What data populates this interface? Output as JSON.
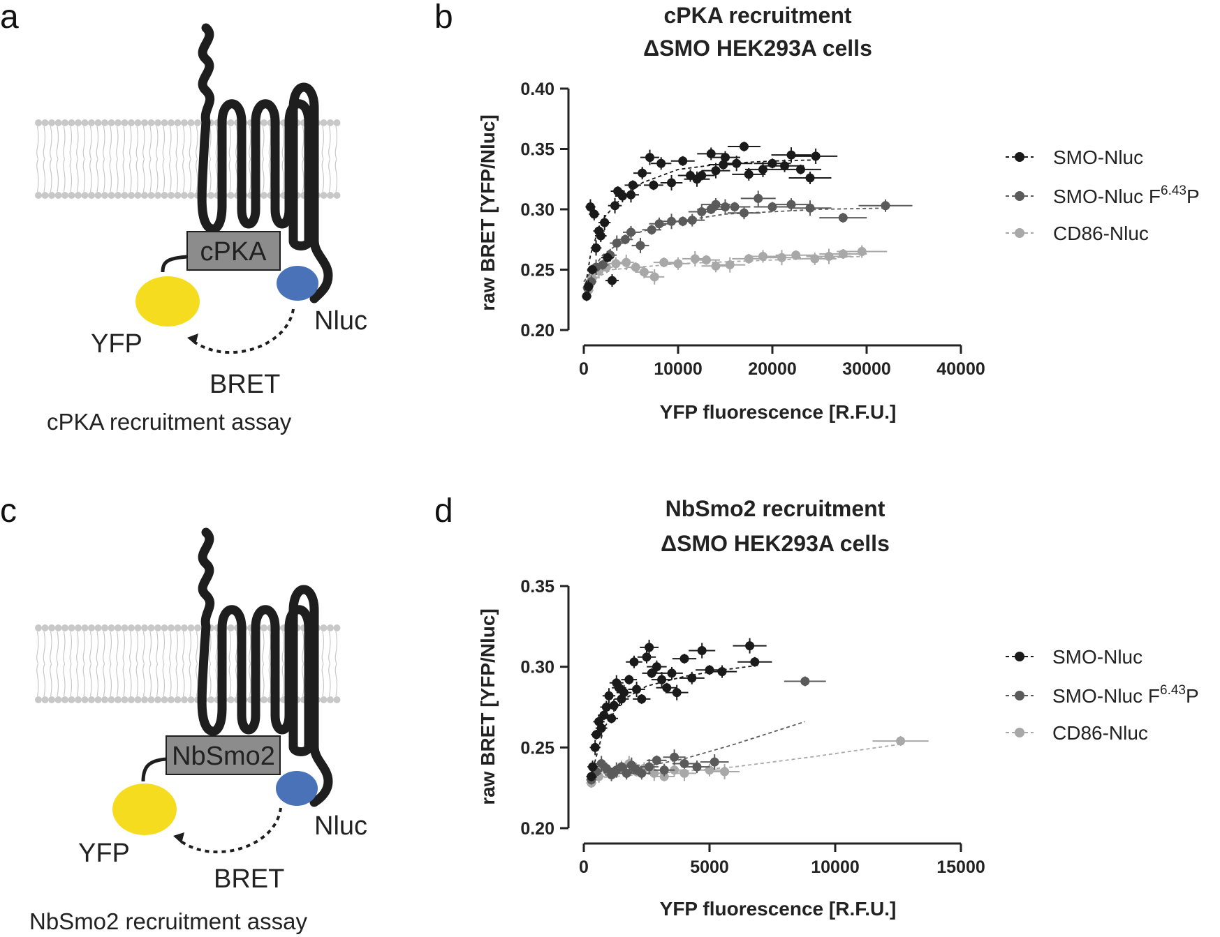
{
  "panels": {
    "a": {
      "letter": "a",
      "box_label": "cPKA",
      "yfp_label": "YFP",
      "nluc_label": "Nluc",
      "bret_label": "BRET",
      "caption": "cPKA recruitment assay"
    },
    "c": {
      "letter": "c",
      "box_label": "NbSmo2",
      "yfp_label": "YFP",
      "nluc_label": "Nluc",
      "bret_label": "BRET",
      "caption": "NbSmo2 recruitment assay"
    }
  },
  "colors": {
    "membrane": "#c8c8c8",
    "receptor": "#1e1e1e",
    "box_fill": "#8c8c8c",
    "yfp": "#f5dc1e",
    "nluc": "#4a72b8",
    "smo_nluc": "#1a1a1a",
    "smo_nluc_mut": "#5a5a5a",
    "cd86_nluc": "#a8a8a8"
  },
  "chart_data": [
    {
      "letter": "b",
      "type": "scatter",
      "title": "cPKA recruitment",
      "subtitle": "ΔSMO HEK293A cells",
      "xlabel": "YFP fluorescence [R.F.U.]",
      "ylabel": "raw BRET [YFP/Nluc]",
      "xlim": [
        0,
        40000
      ],
      "ylim": [
        0.2,
        0.4
      ],
      "xticks": [
        "0",
        "10000",
        "20000",
        "30000",
        "40000"
      ],
      "yticks": [
        "0.20",
        "0.25",
        "0.30",
        "0.35",
        "0.40"
      ],
      "legend_position": "right",
      "series": [
        {
          "name": "SMO-Nluc",
          "color": "#1a1a1a",
          "points": [
            [
              300,
              0.228
            ],
            [
              500,
              0.236
            ],
            [
              700,
              0.302
            ],
            [
              900,
              0.25
            ],
            [
              1100,
              0.296
            ],
            [
              1300,
              0.268
            ],
            [
              1600,
              0.282
            ],
            [
              1800,
              0.278
            ],
            [
              2200,
              0.289
            ],
            [
              2500,
              0.26
            ],
            [
              3000,
              0.241
            ],
            [
              3300,
              0.303
            ],
            [
              3600,
              0.315
            ],
            [
              4100,
              0.311
            ],
            [
              5000,
              0.312
            ],
            [
              5200,
              0.32
            ],
            [
              6200,
              0.33
            ],
            [
              7000,
              0.343
            ],
            [
              7400,
              0.32
            ],
            [
              8200,
              0.338
            ],
            [
              9300,
              0.322
            ],
            [
              10500,
              0.34
            ],
            [
              11300,
              0.328
            ],
            [
              12000,
              0.325
            ],
            [
              12500,
              0.328
            ],
            [
              13500,
              0.346
            ],
            [
              14000,
              0.332
            ],
            [
              14800,
              0.337
            ],
            [
              15000,
              0.343
            ],
            [
              16200,
              0.338
            ],
            [
              17000,
              0.352
            ],
            [
              17500,
              0.329
            ],
            [
              19000,
              0.333
            ],
            [
              20000,
              0.338
            ],
            [
              21300,
              0.336
            ],
            [
              22000,
              0.345
            ],
            [
              23000,
              0.333
            ],
            [
              24000,
              0.326
            ],
            [
              24600,
              0.344
            ]
          ],
          "fit": [
            [
              0,
              0.228
            ],
            [
              700,
              0.262
            ],
            [
              1800,
              0.29
            ],
            [
              3600,
              0.306
            ],
            [
              6200,
              0.322
            ],
            [
              10000,
              0.333
            ],
            [
              15000,
              0.338
            ],
            [
              20000,
              0.34
            ],
            [
              25000,
              0.341
            ]
          ]
        },
        {
          "name": "SMO-Nluc F6.43P",
          "name_base": "SMO-Nluc F",
          "name_sup": "6.43",
          "name_tail": "P",
          "color": "#5a5a5a",
          "points": [
            [
              400,
              0.235
            ],
            [
              800,
              0.24
            ],
            [
              1300,
              0.252
            ],
            [
              2000,
              0.254
            ],
            [
              2800,
              0.262
            ],
            [
              3500,
              0.272
            ],
            [
              4400,
              0.275
            ],
            [
              5000,
              0.281
            ],
            [
              6000,
              0.27
            ],
            [
              7200,
              0.283
            ],
            [
              8000,
              0.288
            ],
            [
              9300,
              0.29
            ],
            [
              10500,
              0.29
            ],
            [
              11500,
              0.291
            ],
            [
              12500,
              0.298
            ],
            [
              13500,
              0.3
            ],
            [
              14000,
              0.304
            ],
            [
              15000,
              0.302
            ],
            [
              16000,
              0.302
            ],
            [
              17000,
              0.297
            ],
            [
              18500,
              0.309
            ],
            [
              20000,
              0.302
            ],
            [
              22000,
              0.304
            ],
            [
              24000,
              0.301
            ],
            [
              27500,
              0.293
            ],
            [
              32000,
              0.303
            ]
          ],
          "fit": [
            [
              0,
              0.24
            ],
            [
              2000,
              0.262
            ],
            [
              5000,
              0.279
            ],
            [
              10000,
              0.29
            ],
            [
              15000,
              0.296
            ],
            [
              20000,
              0.298
            ],
            [
              25000,
              0.3
            ],
            [
              32000,
              0.301
            ]
          ]
        },
        {
          "name": "CD86-Nluc",
          "color": "#a8a8a8",
          "points": [
            [
              500,
              0.233
            ],
            [
              900,
              0.243
            ],
            [
              1600,
              0.249
            ],
            [
              2400,
              0.252
            ],
            [
              3400,
              0.255
            ],
            [
              4500,
              0.256
            ],
            [
              5500,
              0.252
            ],
            [
              6400,
              0.248
            ],
            [
              7500,
              0.244
            ],
            [
              8500,
              0.256
            ],
            [
              10000,
              0.255
            ],
            [
              11800,
              0.259
            ],
            [
              13000,
              0.258
            ],
            [
              14000,
              0.253
            ],
            [
              15500,
              0.254
            ],
            [
              17500,
              0.259
            ],
            [
              19000,
              0.261
            ],
            [
              21000,
              0.26
            ],
            [
              22500,
              0.262
            ],
            [
              24500,
              0.259
            ],
            [
              26000,
              0.261
            ],
            [
              27500,
              0.263
            ],
            [
              29500,
              0.265
            ]
          ],
          "fit": [
            [
              0,
              0.238
            ],
            [
              3000,
              0.25
            ],
            [
              10000,
              0.255
            ],
            [
              20000,
              0.258
            ],
            [
              29500,
              0.261
            ]
          ]
        }
      ]
    },
    {
      "letter": "d",
      "type": "scatter",
      "title": "NbSmo2 recruitment",
      "subtitle": "ΔSMO HEK293A cells",
      "xlabel": "YFP fluorescence [R.F.U.]",
      "ylabel": "raw BRET [YFP/Nluc]",
      "xlim": [
        0,
        15000
      ],
      "ylim": [
        0.2,
        0.35
      ],
      "xticks": [
        "0",
        "5000",
        "10000",
        "15000"
      ],
      "yticks": [
        "0.20",
        "0.25",
        "0.30",
        "0.35"
      ],
      "legend_position": "right",
      "series": [
        {
          "name": "SMO-Nluc",
          "color": "#1a1a1a",
          "points": [
            [
              300,
              0.232
            ],
            [
              350,
              0.238
            ],
            [
              450,
              0.25
            ],
            [
              500,
              0.258
            ],
            [
              600,
              0.266
            ],
            [
              700,
              0.262
            ],
            [
              800,
              0.27
            ],
            [
              900,
              0.275
            ],
            [
              1000,
              0.282
            ],
            [
              1100,
              0.268
            ],
            [
              1200,
              0.276
            ],
            [
              1300,
              0.29
            ],
            [
              1400,
              0.287
            ],
            [
              1500,
              0.28
            ],
            [
              1600,
              0.284
            ],
            [
              1800,
              0.292
            ],
            [
              2000,
              0.303
            ],
            [
              2100,
              0.286
            ],
            [
              2300,
              0.28
            ],
            [
              2500,
              0.306
            ],
            [
              2600,
              0.312
            ],
            [
              2700,
              0.296
            ],
            [
              2900,
              0.3
            ],
            [
              3100,
              0.292
            ],
            [
              3300,
              0.287
            ],
            [
              3500,
              0.296
            ],
            [
              3700,
              0.284
            ],
            [
              4000,
              0.305
            ],
            [
              4300,
              0.293
            ],
            [
              4700,
              0.31
            ],
            [
              5000,
              0.298
            ],
            [
              5500,
              0.297
            ],
            [
              6600,
              0.313
            ],
            [
              6800,
              0.303
            ]
          ],
          "fit": [
            [
              300,
              0.233
            ],
            [
              800,
              0.262
            ],
            [
              1500,
              0.279
            ],
            [
              2500,
              0.288
            ],
            [
              4000,
              0.294
            ],
            [
              5500,
              0.298
            ],
            [
              7000,
              0.301
            ]
          ]
        },
        {
          "name": "SMO-Nluc F6.43P",
          "name_base": "SMO-Nluc F",
          "name_sup": "6.43",
          "name_tail": "P",
          "color": "#5a5a5a",
          "points": [
            [
              300,
              0.23
            ],
            [
              500,
              0.235
            ],
            [
              700,
              0.24
            ],
            [
              900,
              0.237
            ],
            [
              1100,
              0.233
            ],
            [
              1300,
              0.236
            ],
            [
              1500,
              0.238
            ],
            [
              1700,
              0.234
            ],
            [
              1900,
              0.239
            ],
            [
              2100,
              0.236
            ],
            [
              2300,
              0.234
            ],
            [
              2600,
              0.238
            ],
            [
              2900,
              0.242
            ],
            [
              3200,
              0.236
            ],
            [
              3600,
              0.244
            ],
            [
              4000,
              0.24
            ],
            [
              4500,
              0.238
            ],
            [
              5200,
              0.241
            ],
            [
              8800,
              0.291
            ]
          ],
          "fit": [
            [
              300,
              0.233
            ],
            [
              2000,
              0.237
            ],
            [
              4000,
              0.243
            ],
            [
              6000,
              0.252
            ],
            [
              8800,
              0.266
            ]
          ]
        },
        {
          "name": "CD86-Nluc",
          "color": "#a8a8a8",
          "points": [
            [
              300,
              0.228
            ],
            [
              600,
              0.232
            ],
            [
              900,
              0.236
            ],
            [
              1200,
              0.234
            ],
            [
              1500,
              0.238
            ],
            [
              1800,
              0.24
            ],
            [
              2100,
              0.235
            ],
            [
              2400,
              0.237
            ],
            [
              2800,
              0.234
            ],
            [
              3200,
              0.232
            ],
            [
              3600,
              0.236
            ],
            [
              4000,
              0.234
            ],
            [
              4500,
              0.238
            ],
            [
              5000,
              0.236
            ],
            [
              5600,
              0.235
            ],
            [
              12600,
              0.254
            ]
          ],
          "fit": [
            [
              300,
              0.231
            ],
            [
              3000,
              0.234
            ],
            [
              6000,
              0.238
            ],
            [
              9000,
              0.244
            ],
            [
              12600,
              0.252
            ]
          ]
        }
      ]
    }
  ]
}
